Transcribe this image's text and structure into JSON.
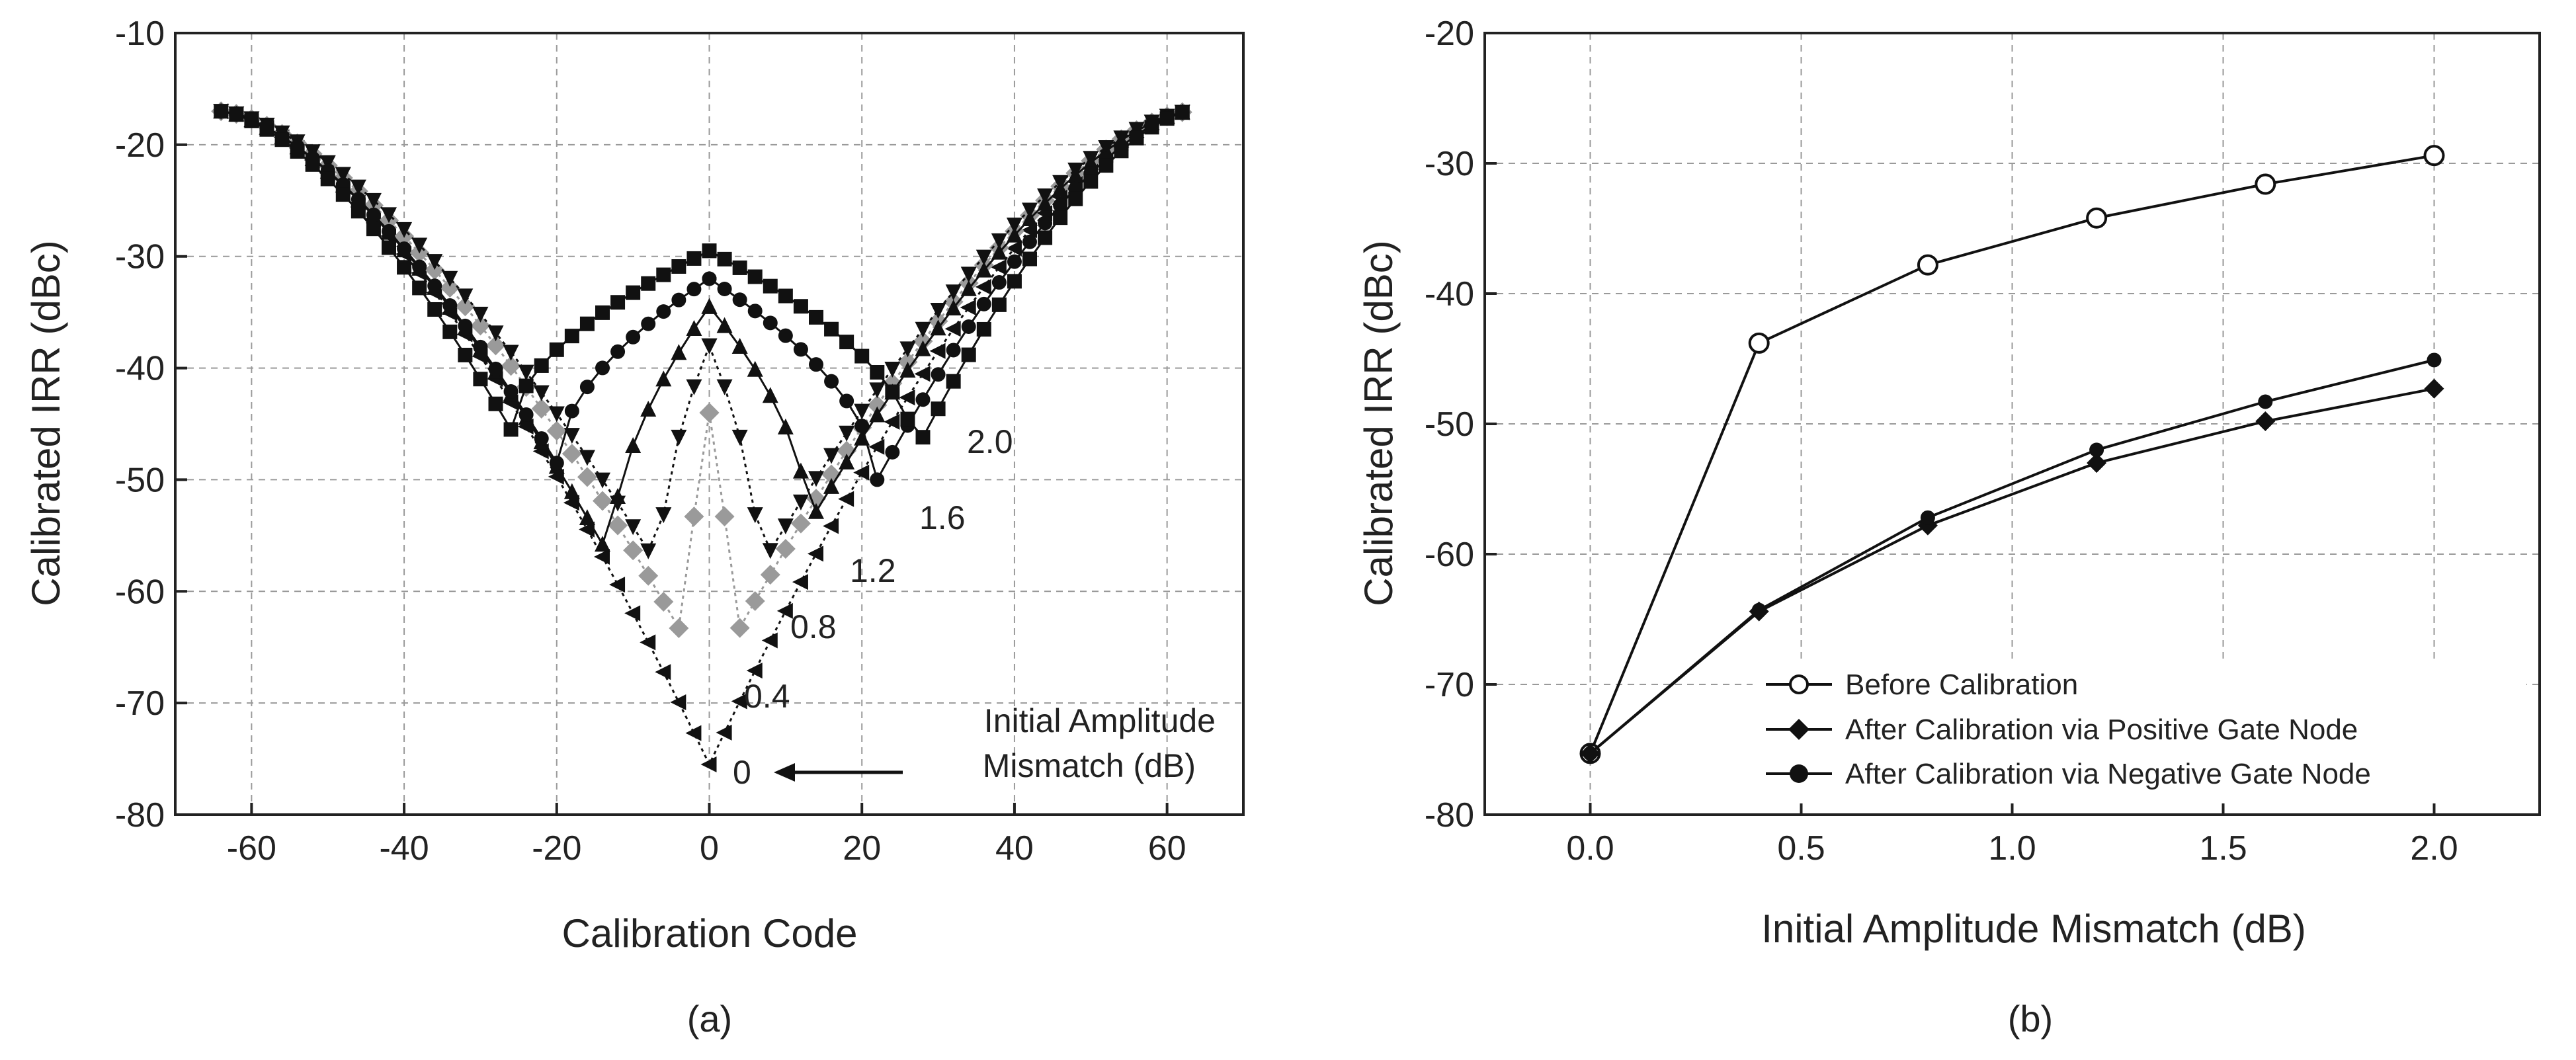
{
  "chart_data": [
    {
      "type": "line",
      "panel_label": "(a)",
      "title": "",
      "xlabel": "Calibration Code",
      "ylabel": "Calibrated IRR (dBc)",
      "xlim": [
        -70,
        70
      ],
      "ylim": [
        -80,
        -10
      ],
      "xticks": [
        -60,
        -40,
        -20,
        0,
        20,
        40,
        60
      ],
      "xtick_labels": [
        "-60",
        "-40",
        "-20",
        "0",
        "20",
        "40",
        "60"
      ],
      "yticks": [
        -80,
        -70,
        -60,
        -50,
        -40,
        -30,
        -20,
        -10
      ],
      "ytick_labels": [
        "-80",
        "-70",
        "-60",
        "-50",
        "-40",
        "-30",
        "-20",
        "-10"
      ],
      "grid": true,
      "series": [
        {
          "name": "0",
          "center": 0,
          "min": -75.5,
          "marker": "left-triangle",
          "color": "#111111",
          "dash": "dotted"
        },
        {
          "name": "0.4",
          "center": -3,
          "min": -64.5,
          "marker": "diamond",
          "color": "#9a9a9a",
          "dash": "dotted"
        },
        {
          "name": "0.4",
          "center": 3,
          "min": -64.5,
          "marker": "diamond",
          "color": "#9a9a9a",
          "dash": "dotted"
        },
        {
          "name": "0.8",
          "center": -6.5,
          "min": -58,
          "marker": "down-triangle",
          "color": "#111111",
          "dash": "dotted"
        },
        {
          "name": "0.8",
          "center": 6.5,
          "min": -58,
          "marker": "down-triangle",
          "color": "#111111",
          "dash": "dotted"
        },
        {
          "name": "1.2",
          "center": -13,
          "min": -57,
          "marker": "triangle",
          "color": "#111111",
          "dash": "solid"
        },
        {
          "name": "1.2",
          "center": 13,
          "min": -54,
          "marker": "triangle",
          "color": "#111111",
          "dash": "solid"
        },
        {
          "name": "1.6",
          "center": -20,
          "min": -48.5,
          "marker": "circle",
          "color": "#111111",
          "dash": "solid"
        },
        {
          "name": "1.6",
          "center": 22,
          "min": -50,
          "marker": "circle",
          "color": "#111111",
          "dash": "solid"
        },
        {
          "name": "2.0",
          "center": -26,
          "min": -45.5,
          "marker": "square",
          "color": "#111111",
          "dash": "solid"
        },
        {
          "name": "2.0",
          "center": 27,
          "min": -47.5,
          "marker": "square",
          "color": "#111111",
          "dash": "solid"
        }
      ],
      "peak_values": {
        "0.4": -44,
        "0.8": -38,
        "1.2": -34.5,
        "1.6": -32,
        "2.0": -29.5
      },
      "edge_value": -17,
      "annotations": [
        "2.0",
        "1.6",
        "1.2",
        "0.8",
        "0.4",
        "0"
      ],
      "legend_note": {
        "line1": "Initial Amplitude",
        "line2": "Mismatch (dB)"
      }
    },
    {
      "type": "line",
      "panel_label": "(b)",
      "title": "",
      "xlabel": "Initial Amplitude Mismatch (dB)",
      "ylabel": "Calibrated IRR (dBc)",
      "xlim": [
        -0.25,
        2.25
      ],
      "ylim": [
        -80,
        -20
      ],
      "xticks": [
        0.0,
        0.5,
        1.0,
        1.5,
        2.0
      ],
      "xtick_labels": [
        "0.0",
        "0.5",
        "1.0",
        "1.5",
        "2.0"
      ],
      "yticks": [
        -80,
        -70,
        -60,
        -50,
        -40,
        -30,
        -20
      ],
      "ytick_labels": [
        "-80",
        "-70",
        "-60",
        "-50",
        "-40",
        "-30",
        "-20"
      ],
      "grid": true,
      "legend_position": "bottom-right",
      "x": [
        0.0,
        0.4,
        0.8,
        1.2,
        1.6,
        2.0
      ],
      "series": [
        {
          "name": "Before Calibration",
          "values": [
            -75.3,
            -43.8,
            -37.8,
            -34.2,
            -31.6,
            -29.4
          ],
          "marker": "open-circle"
        },
        {
          "name": "After Calibration via Positive Gate Node",
          "values": [
            -75.3,
            -64.4,
            -57.8,
            -53.0,
            -49.8,
            -47.3
          ],
          "marker": "diamond"
        },
        {
          "name": "After Calibration via Negative Gate Node",
          "values": [
            -75.3,
            -64.3,
            -57.2,
            -52.0,
            -48.3,
            -45.1
          ],
          "marker": "circle"
        }
      ]
    }
  ]
}
